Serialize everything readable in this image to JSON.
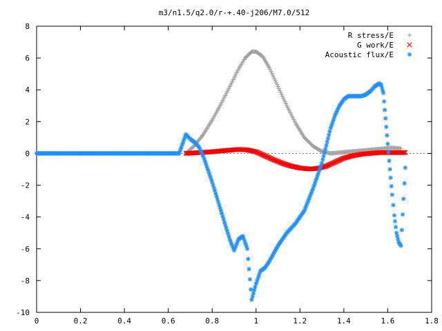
{
  "chart_data": {
    "type": "scatter",
    "title": "m3/n1.5/q2.0/r-+.40-j206/M7.0/512",
    "xlabel": "",
    "ylabel": "",
    "xlim": [
      0,
      1.8
    ],
    "ylim": [
      -10,
      8
    ],
    "x_ticks": [
      "0",
      "0.2",
      "0.4",
      "0.6",
      "0.8",
      "1",
      "1.2",
      "1.4",
      "1.6",
      "1.8"
    ],
    "y_ticks": [
      "8",
      "6",
      "4",
      "2",
      "0",
      "-2",
      "-4",
      "-6",
      "-8",
      "-10"
    ],
    "grid": false,
    "legend_position": "top-right",
    "series": [
      {
        "name": "R stress/E",
        "marker": "+",
        "color": "#a0a0a0",
        "x": [
          0.68,
          0.72,
          0.76,
          0.8,
          0.84,
          0.88,
          0.92,
          0.95,
          0.98,
          1.0,
          1.03,
          1.06,
          1.1,
          1.14,
          1.18,
          1.22,
          1.26,
          1.3,
          1.34,
          1.38,
          1.42,
          1.46,
          1.5,
          1.54,
          1.58,
          1.62,
          1.66
        ],
        "y": [
          0.0,
          0.5,
          1.2,
          2.1,
          3.1,
          4.2,
          5.3,
          6.0,
          6.4,
          6.4,
          6.1,
          5.4,
          4.2,
          3.0,
          1.9,
          1.0,
          0.45,
          0.12,
          0.0,
          0.05,
          0.1,
          0.15,
          0.2,
          0.25,
          0.3,
          0.35,
          0.3
        ]
      },
      {
        "name": "G work/E",
        "marker": "x",
        "color": "#ff0000",
        "x": [
          0.68,
          0.74,
          0.8,
          0.86,
          0.92,
          0.96,
          1.0,
          1.04,
          1.08,
          1.12,
          1.16,
          1.2,
          1.24,
          1.28,
          1.32,
          1.36,
          1.4,
          1.44,
          1.48,
          1.52,
          1.56,
          1.6,
          1.64,
          1.68
        ],
        "y": [
          0.0,
          0.05,
          0.1,
          0.18,
          0.25,
          0.22,
          0.1,
          -0.15,
          -0.4,
          -0.62,
          -0.8,
          -0.92,
          -0.98,
          -0.95,
          -0.8,
          -0.55,
          -0.3,
          -0.15,
          -0.05,
          0.0,
          0.05,
          0.05,
          0.05,
          0.05
        ]
      },
      {
        "name": "Acoustic flux/E",
        "marker": "*",
        "color": "#1e90ff",
        "x": [
          0.0,
          0.05,
          0.1,
          0.15,
          0.2,
          0.25,
          0.3,
          0.35,
          0.4,
          0.45,
          0.5,
          0.55,
          0.6,
          0.65,
          0.68,
          0.7,
          0.72,
          0.74,
          0.76,
          0.78,
          0.8,
          0.82,
          0.84,
          0.86,
          0.88,
          0.9,
          0.92,
          0.94,
          0.96,
          0.98,
          1.0,
          1.02,
          1.04,
          1.06,
          1.08,
          1.1,
          1.14,
          1.18,
          1.22,
          1.26,
          1.3,
          1.32,
          1.34,
          1.36,
          1.38,
          1.4,
          1.42,
          1.44,
          1.46,
          1.48,
          1.5,
          1.52,
          1.54,
          1.56,
          1.57,
          1.58,
          1.59,
          1.6,
          1.61,
          1.62,
          1.63,
          1.64,
          1.65,
          1.66,
          1.68
        ],
        "y": [
          0.0,
          0.0,
          0.0,
          0.0,
          0.0,
          0.0,
          0.0,
          0.0,
          0.0,
          0.0,
          0.0,
          0.0,
          0.0,
          0.0,
          1.2,
          0.9,
          0.7,
          0.4,
          -0.2,
          -1.0,
          -1.8,
          -2.7,
          -3.6,
          -4.5,
          -5.4,
          -6.1,
          -5.4,
          -5.2,
          -6.0,
          -9.2,
          -8.2,
          -7.4,
          -7.2,
          -6.8,
          -6.3,
          -5.8,
          -5.0,
          -4.4,
          -3.6,
          -2.2,
          -0.6,
          0.5,
          1.6,
          2.4,
          3.0,
          3.4,
          3.6,
          3.6,
          3.6,
          3.6,
          3.7,
          3.9,
          4.2,
          4.4,
          4.3,
          3.8,
          2.2,
          0.6,
          -1.0,
          -2.6,
          -3.9,
          -5.0,
          -5.6,
          -5.8,
          -0.9
        ]
      }
    ]
  }
}
